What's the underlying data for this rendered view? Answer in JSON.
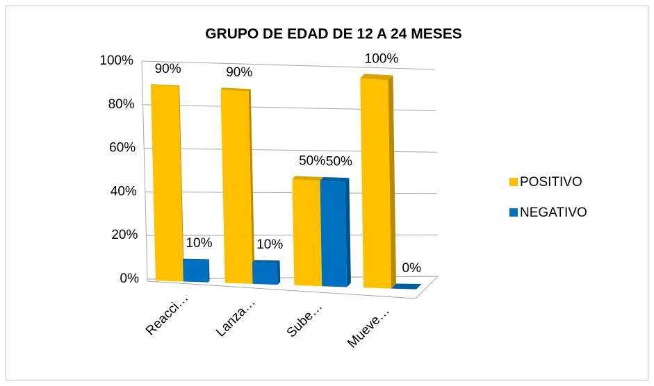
{
  "chart_data": {
    "type": "bar3d",
    "title": "GRUPO DE EDAD DE 12 A 24 MESES",
    "categories": [
      "Reacci…",
      "Lanza…",
      "Sube…",
      "Mueve…"
    ],
    "series": [
      {
        "name": "POSITIVO",
        "color": "#ffc000",
        "values": [
          90,
          90,
          50,
          100
        ],
        "value_labels": [
          "90%",
          "90%",
          "50%",
          "100%"
        ]
      },
      {
        "name": "NEGATIVO",
        "color": "#0070c0",
        "values": [
          10,
          10,
          50,
          0
        ],
        "value_labels": [
          "10%",
          "10%",
          "50%",
          "0%"
        ]
      }
    ],
    "ylim": [
      0,
      100
    ],
    "yticks": [
      {
        "value": 0,
        "label": "0%"
      },
      {
        "value": 20,
        "label": "20%"
      },
      {
        "value": 40,
        "label": "40%"
      },
      {
        "value": 60,
        "label": "60%"
      },
      {
        "value": 80,
        "label": "80%"
      },
      {
        "value": 100,
        "label": "100%"
      }
    ],
    "grid": true,
    "legend": "right"
  }
}
